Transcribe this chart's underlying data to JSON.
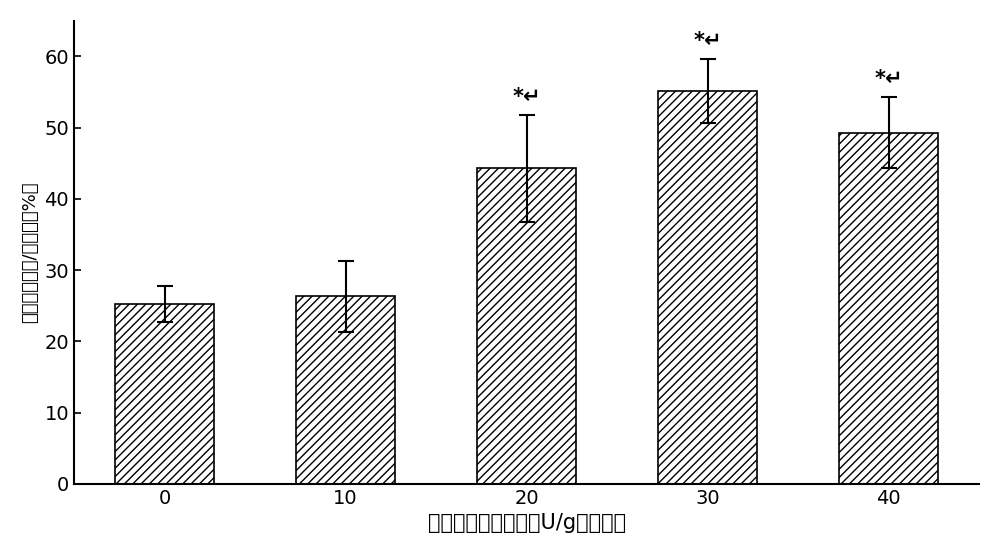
{
  "categories": [
    "0",
    "10",
    "20",
    "30",
    "40"
  ],
  "values": [
    25.2,
    26.3,
    44.3,
    55.2,
    49.3
  ],
  "errors": [
    2.5,
    5.0,
    7.5,
    4.5,
    5.0
  ],
  "significance": [
    false,
    false,
    true,
    true,
    true
  ],
  "sig_label": "*↵",
  "xlabel": "转谷氨酰胺酶含量（U/g蛋白质）",
  "ylabel": "微胶囊化效率/存活率（%）",
  "ylim": [
    0,
    65
  ],
  "yticks": [
    0,
    10,
    20,
    30,
    40,
    50,
    60
  ],
  "bar_color": "#ffffff",
  "bar_edgecolor": "#000000",
  "hatch": "////",
  "figsize": [
    10.0,
    5.54
  ],
  "dpi": 100,
  "sig_fontsize": 15,
  "xlabel_fontsize": 15,
  "ylabel_fontsize": 13,
  "tick_fontsize": 14
}
